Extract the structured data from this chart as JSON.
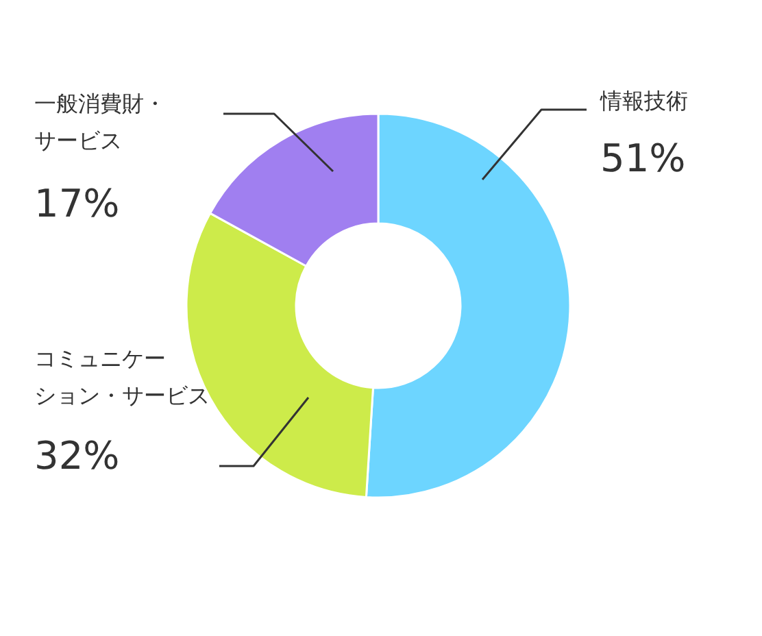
{
  "chart_data": {
    "type": "donut",
    "categories": [
      "情報技術",
      "コミュニケーション・サービス",
      "一般消費財・サービス"
    ],
    "values": [
      51,
      32,
      17
    ],
    "value_labels": [
      "51%",
      "32%",
      "17%"
    ],
    "colors": [
      "#6dd5ff",
      "#cdeb4a",
      "#a07ff0"
    ]
  }
}
